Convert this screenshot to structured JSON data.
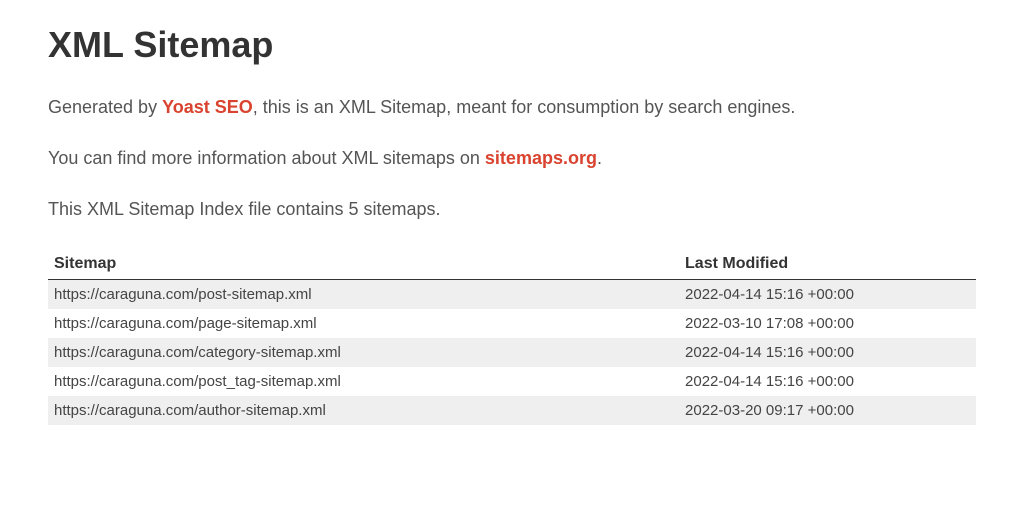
{
  "page": {
    "title": "XML Sitemap",
    "intro1_prefix": "Generated by ",
    "intro1_link_text": "Yoast SEO",
    "intro1_suffix": ", this is an XML Sitemap, meant for consumption by search engines.",
    "intro2_prefix": "You can find more information about XML sitemaps on ",
    "intro2_link_text": "sitemaps.org",
    "intro2_suffix": ".",
    "intro3": "This XML Sitemap Index file contains 5 sitemaps."
  },
  "table": {
    "columns": [
      "Sitemap",
      "Last Modified"
    ],
    "rows": [
      [
        "https://caraguna.com/post-sitemap.xml",
        "2022-04-14 15:16 +00:00"
      ],
      [
        "https://caraguna.com/page-sitemap.xml",
        "2022-03-10 17:08 +00:00"
      ],
      [
        "https://caraguna.com/category-sitemap.xml",
        "2022-04-14 15:16 +00:00"
      ],
      [
        "https://caraguna.com/post_tag-sitemap.xml",
        "2022-04-14 15:16 +00:00"
      ],
      [
        "https://caraguna.com/author-sitemap.xml",
        "2022-03-20 09:17 +00:00"
      ]
    ]
  },
  "styling": {
    "link_color": "#d9432f",
    "heading_color": "#333333",
    "text_color": "#555555",
    "row_odd_bg": "#efefef",
    "row_even_bg": "#ffffff",
    "header_border_color": "#333333"
  }
}
